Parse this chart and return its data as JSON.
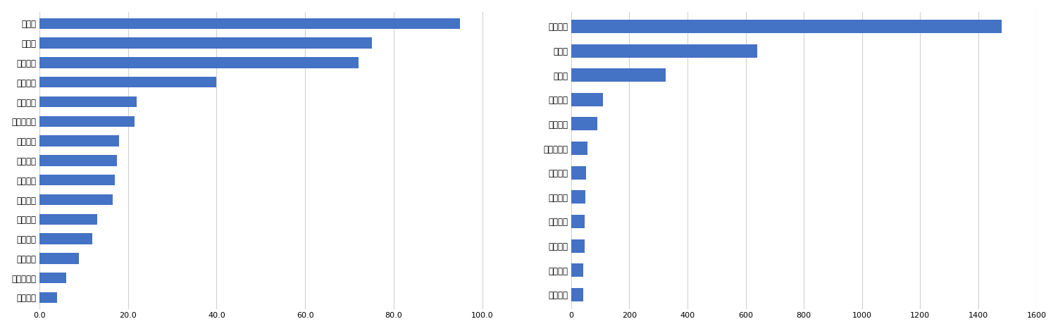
{
  "left_labels": [
    "优必选",
    "极智嘉",
    "大疆创新",
    "达闼科技",
    "极飞科技",
    "高仙机器人",
    "擎朗智能",
    "海柔创新",
    "梅卡曼德",
    "普渡科技",
    "云迹科技",
    "优地科技",
    "猎户星空",
    "珞石机器人",
    "云鲸智能"
  ],
  "left_values": [
    95.0,
    75.0,
    72.0,
    40.0,
    22.0,
    21.5,
    18.0,
    17.5,
    17.0,
    16.5,
    13.0,
    12.0,
    9.0,
    6.0,
    4.0
  ],
  "left_xlim": [
    0,
    105
  ],
  "left_xticks": [
    0.0,
    20.0,
    40.0,
    60.0,
    80.0,
    100.0
  ],
  "left_xticklabels": [
    "0.0",
    "20.0",
    "40.0",
    "60.0",
    "80.0",
    "100.0"
  ],
  "right_labels": [
    "大疆创新",
    "优必选",
    "极智嘉",
    "达闼科技",
    "极飞科技",
    "高仙机器人",
    "擎朗智能",
    "海柔创新",
    "梅卡曼德",
    "普渡科技",
    "优地科技",
    "云鲸智能"
  ],
  "right_values": [
    1480,
    640,
    325,
    110,
    90,
    55,
    50,
    48,
    45,
    45,
    42,
    42
  ],
  "right_xlim": [
    0,
    1600
  ],
  "right_xticks": [
    0,
    200,
    400,
    600,
    800,
    1000,
    1200,
    1400,
    1600
  ],
  "right_xticklabels": [
    "0",
    "200",
    "400",
    "600",
    "800",
    "1000",
    "1200",
    "1400",
    "1600"
  ],
  "bar_color": "#4472C4",
  "bg_color": "#FFFFFF",
  "grid_color": "#D0D0D0",
  "label_font_size": 8.5,
  "tick_font_size": 8
}
